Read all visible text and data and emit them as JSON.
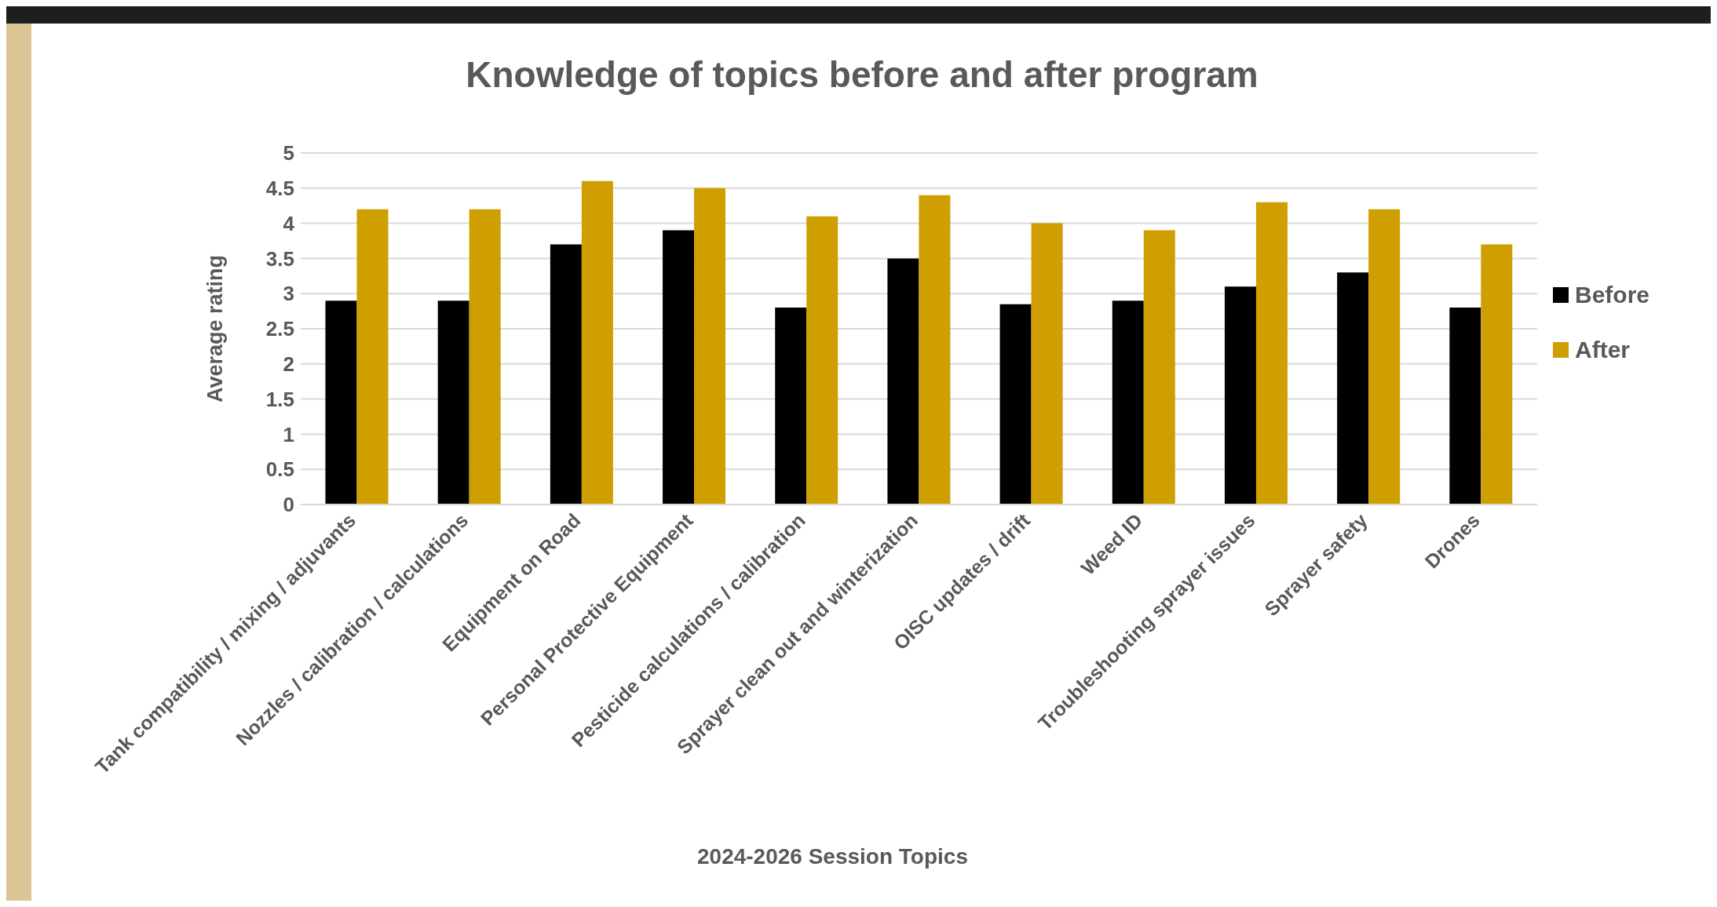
{
  "chart_data": {
    "type": "bar",
    "title": "Knowledge of topics before and after program",
    "xlabel": "2024-2026 Session Topics",
    "ylabel": "Average rating",
    "categories": [
      "Tank compatibility / mixing / adjuvants",
      "Nozzles / calibration / calculations",
      "Equipment on Road",
      "Personal Protective Equipment",
      "Pesticide calculations / calibration",
      "Sprayer clean out and winterization",
      "OISC updates / drift",
      "Weed ID",
      "Troubleshooting sprayer issues",
      "Sprayer safety",
      "Drones"
    ],
    "series": [
      {
        "name": "Before",
        "color": "#000000",
        "values": [
          2.9,
          2.9,
          3.7,
          3.9,
          2.8,
          3.5,
          2.85,
          2.9,
          3.1,
          3.3,
          2.8
        ]
      },
      {
        "name": "After",
        "color": "#cf9e00",
        "values": [
          4.2,
          4.2,
          4.6,
          4.5,
          4.1,
          4.4,
          4.0,
          3.9,
          4.3,
          4.2,
          3.7
        ]
      }
    ],
    "ylim": [
      0,
      5
    ],
    "yticks": [
      0,
      0.5,
      1,
      1.5,
      2,
      2.5,
      3,
      3.5,
      4,
      4.5,
      5
    ],
    "grid": "y",
    "legend": "right"
  }
}
